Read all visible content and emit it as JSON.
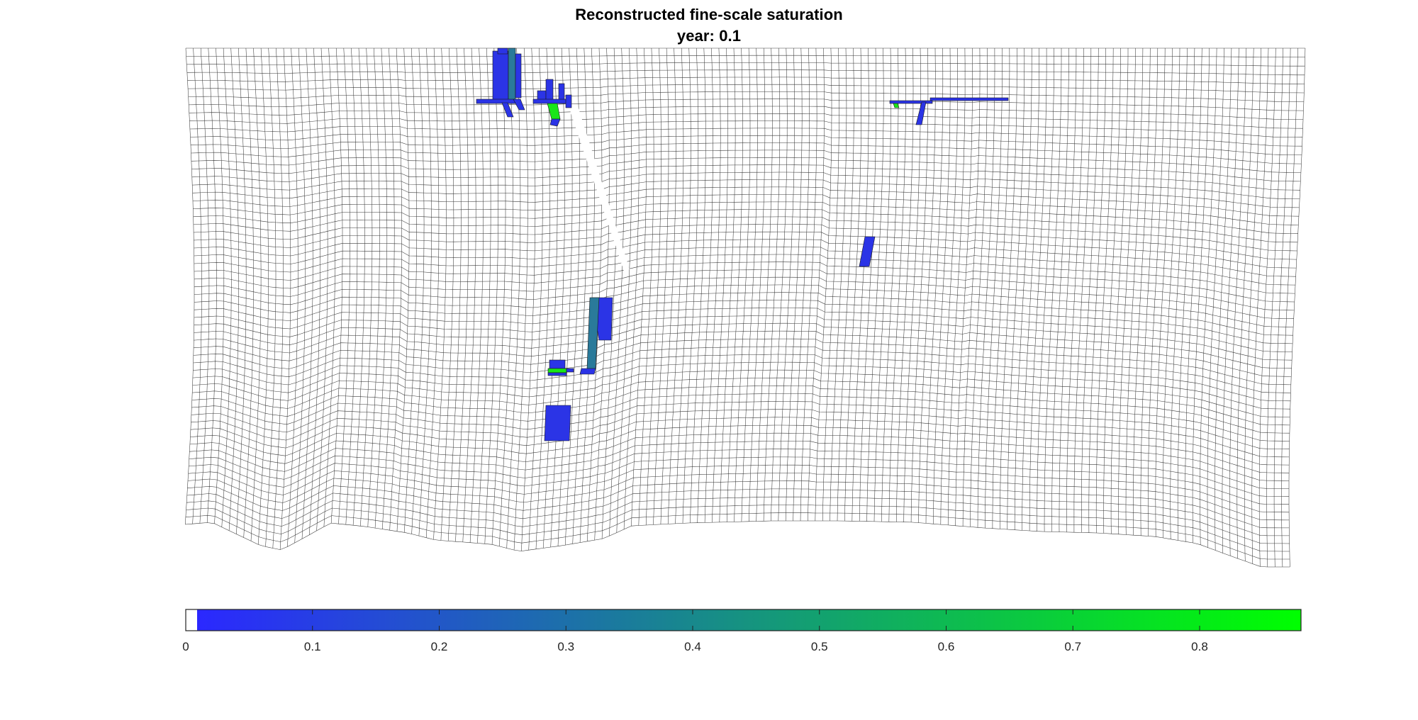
{
  "figure": {
    "title": "Reconstructed fine-scale saturation",
    "subtitle": "year: 0.1"
  },
  "colorbar": {
    "min": 0,
    "max": 0.88,
    "ticks": [
      0,
      0.1,
      0.2,
      0.3,
      0.4,
      0.5,
      0.6,
      0.7,
      0.8
    ],
    "tick_labels": [
      "0",
      "0.1",
      "0.2",
      "0.3",
      "0.4",
      "0.5",
      "0.6",
      "0.7",
      "0.8"
    ],
    "color_low": "#2b28ff",
    "color_high": "#00ff00",
    "below_range_color": "#ffffff"
  },
  "colors": {
    "grid_line": "#3a3a3a",
    "background": "#ffffff",
    "cell_blue": "#2b34e6",
    "cell_teal": "#2a7a9a",
    "cell_green": "#19e619"
  }
}
